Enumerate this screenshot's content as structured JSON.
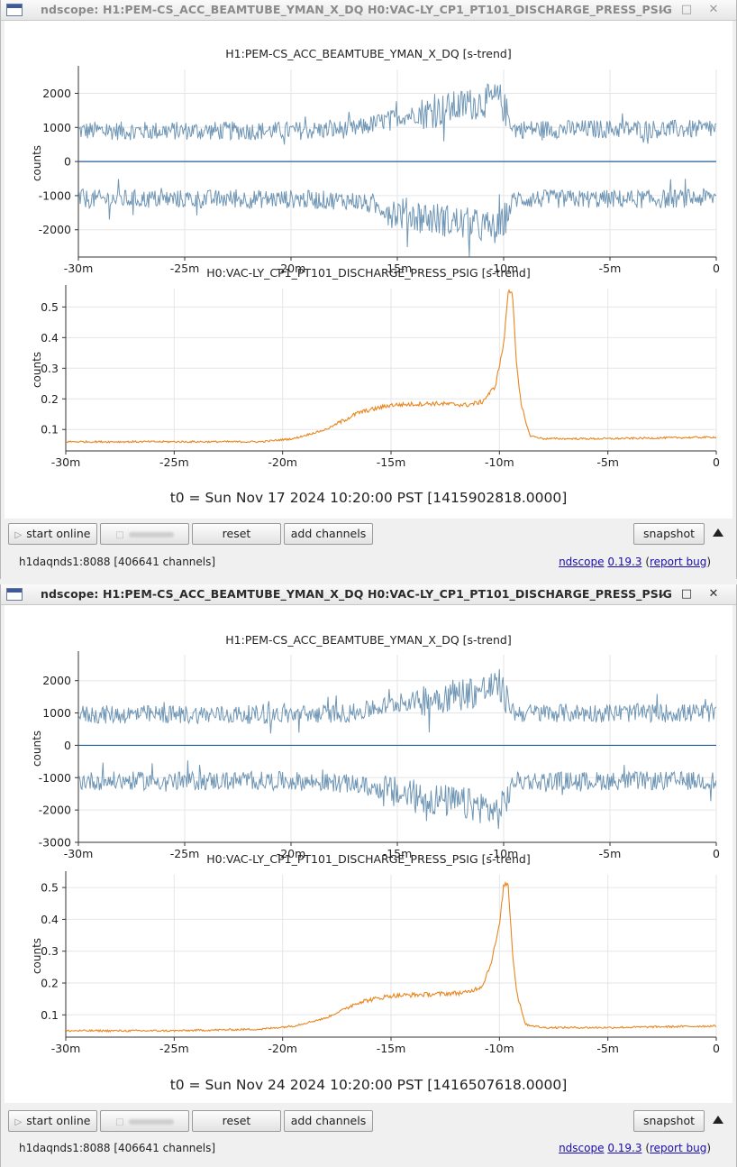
{
  "windows": [
    {
      "title": "ndscope: H1:PEM-CS_ACC_BEAMTUBE_YMAN_X_DQ H0:VAC-LY_CP1_PT101_DISCHARGE_PRESS_PSIG",
      "plots": [
        {
          "title": "H1:PEM-CS_ACC_BEAMTUBE_YMAN_X_DQ [s-trend]",
          "ylabel": "counts"
        },
        {
          "title": "H0:VAC-LY_CP1_PT101_DISCHARGE_PRESS_PSIG [s-trend]",
          "ylabel": "counts"
        }
      ],
      "t0": "t0 = Sun Nov 17 2024 10:20:00 PST [1415902818.0000]",
      "toolbar": {
        "start_online": "start online",
        "reset": "reset",
        "add_channels": "add channels",
        "snapshot": "snapshot"
      },
      "status": {
        "server": "h1daqnds1:8088  [406641 channels]",
        "app": "ndscope",
        "version": "0.19.3",
        "report_bug": "report bug"
      }
    },
    {
      "title": "ndscope: H1:PEM-CS_ACC_BEAMTUBE_YMAN_X_DQ H0:VAC-LY_CP1_PT101_DISCHARGE_PRESS_PSIG",
      "plots": [
        {
          "title": "H1:PEM-CS_ACC_BEAMTUBE_YMAN_X_DQ [s-trend]",
          "ylabel": "counts"
        },
        {
          "title": "H0:VAC-LY_CP1_PT101_DISCHARGE_PRESS_PSIG [s-trend]",
          "ylabel": "counts"
        }
      ],
      "t0": "t0 = Sun Nov 24 2024 10:20:00 PST [1416507618.0000]",
      "toolbar": {
        "start_online": "start online",
        "reset": "reset",
        "add_channels": "add channels",
        "snapshot": "snapshot"
      },
      "status": {
        "server": "h1daqnds1:8088  [406641 channels]",
        "app": "ndscope",
        "version": "0.19.3",
        "report_bug": "report bug"
      }
    }
  ],
  "colors": {
    "accel_trace": "#6f96b5",
    "accel_mean": "#1f5e9c",
    "pressure_trace": "#e8861f",
    "grid": "#e6e6e6"
  },
  "icons": {
    "minimize": "chevron-down-icon",
    "maximize": "square-icon",
    "close": "close-icon",
    "play": "play-icon",
    "collapse": "triangle-up-icon"
  },
  "chart_data": [
    {
      "type": "line",
      "title": "H1:PEM-CS_ACC_BEAMTUBE_YMAN_X_DQ [s-trend]",
      "xlabel": "",
      "ylabel": "counts",
      "x_ticks": [
        "-30m",
        "-25m",
        "-20m",
        "-15m",
        "-10m",
        "-5m",
        "0"
      ],
      "y_ticks": [
        2000,
        1000,
        0,
        -1000,
        -2000
      ],
      "xlim": [
        -30,
        0
      ],
      "ylim": [
        -2800,
        2700
      ],
      "series": [
        {
          "points": [
            [
              -30,
              900
            ],
            [
              -25,
              900
            ],
            [
              -20,
              900
            ],
            [
              -17,
              950
            ],
            [
              -15,
              1300
            ],
            [
              -13,
              1500
            ],
            [
              -11,
              1750
            ],
            [
              -10.2,
              1850
            ],
            [
              -9.5,
              950
            ],
            [
              -5,
              950
            ],
            [
              -2.5,
              950
            ],
            [
              0,
              950
            ]
          ]
        },
        {
          "points": [
            [
              -30,
              0
            ],
            [
              0,
              0
            ]
          ]
        },
        {
          "points": [
            [
              -30,
              -1100
            ],
            [
              -25,
              -1100
            ],
            [
              -20,
              -1100
            ],
            [
              -17,
              -1150
            ],
            [
              -15,
              -1500
            ],
            [
              -13,
              -1700
            ],
            [
              -11,
              -1900
            ],
            [
              -10.2,
              -2000
            ],
            [
              -9.5,
              -1100
            ],
            [
              -5,
              -1100
            ],
            [
              -2.5,
              -1100
            ],
            [
              0,
              -1050
            ]
          ]
        }
      ]
    },
    {
      "type": "line",
      "title": "H0:VAC-LY_CP1_PT101_DISCHARGE_PRESS_PSIG [s-trend]",
      "xlabel": "",
      "ylabel": "counts",
      "x_ticks": [
        "-30m",
        "-25m",
        "-20m",
        "-15m",
        "-10m",
        "-5m",
        "0"
      ],
      "y_ticks": [
        0.5,
        0.4,
        0.3,
        0.2,
        0.1
      ],
      "xlim": [
        -30,
        0
      ],
      "ylim": [
        0.03,
        0.56
      ],
      "series": [
        {
          "points": [
            [
              -30,
              0.06
            ],
            [
              -25,
              0.06
            ],
            [
              -21,
              0.06
            ],
            [
              -19.5,
              0.07
            ],
            [
              -18,
              0.1
            ],
            [
              -16.5,
              0.155
            ],
            [
              -15,
              0.18
            ],
            [
              -13,
              0.185
            ],
            [
              -11.5,
              0.18
            ],
            [
              -10.8,
              0.19
            ],
            [
              -10.2,
              0.24
            ],
            [
              -9.8,
              0.38
            ],
            [
              -9.6,
              0.55
            ],
            [
              -9.4,
              0.55
            ],
            [
              -9.2,
              0.3
            ],
            [
              -9,
              0.18
            ],
            [
              -8.6,
              0.08
            ],
            [
              -8,
              0.07
            ],
            [
              -5,
              0.07
            ],
            [
              0,
              0.075
            ]
          ]
        }
      ]
    },
    {
      "type": "line",
      "title": "H1:PEM-CS_ACC_BEAMTUBE_YMAN_X_DQ [s-trend]",
      "xlabel": "",
      "ylabel": "counts",
      "x_ticks": [
        "-30m",
        "-25m",
        "-20m",
        "-15m",
        "-10m",
        "-5m",
        "0"
      ],
      "y_ticks": [
        2000,
        1000,
        0,
        -1000,
        -2000,
        -3000
      ],
      "xlim": [
        -30,
        0
      ],
      "ylim": [
        -3000,
        2800
      ],
      "series": [
        {
          "points": [
            [
              -30,
              950
            ],
            [
              -25,
              950
            ],
            [
              -20,
              950
            ],
            [
              -17,
              1000
            ],
            [
              -15,
              1300
            ],
            [
              -13,
              1500
            ],
            [
              -11,
              1700
            ],
            [
              -10.2,
              1850
            ],
            [
              -9.5,
              1000
            ],
            [
              -5,
              1000
            ],
            [
              0,
              1000
            ]
          ]
        },
        {
          "points": [
            [
              -30,
              0
            ],
            [
              0,
              0
            ]
          ]
        },
        {
          "points": [
            [
              -30,
              -1100
            ],
            [
              -25,
              -1100
            ],
            [
              -20,
              -1100
            ],
            [
              -17,
              -1200
            ],
            [
              -15,
              -1500
            ],
            [
              -13,
              -1700
            ],
            [
              -11,
              -1900
            ],
            [
              -10.2,
              -2100
            ],
            [
              -9.5,
              -1100
            ],
            [
              -5,
              -1100
            ],
            [
              0,
              -1100
            ]
          ]
        }
      ]
    },
    {
      "type": "line",
      "title": "H0:VAC-LY_CP1_PT101_DISCHARGE_PRESS_PSIG [s-trend]",
      "xlabel": "",
      "ylabel": "counts",
      "x_ticks": [
        "-30m",
        "-25m",
        "-20m",
        "-15m",
        "-10m",
        "-5m",
        "0"
      ],
      "y_ticks": [
        0.5,
        0.4,
        0.3,
        0.2,
        0.1
      ],
      "xlim": [
        -30,
        0
      ],
      "ylim": [
        0.03,
        0.54
      ],
      "series": [
        {
          "points": [
            [
              -30,
              0.05
            ],
            [
              -25,
              0.05
            ],
            [
              -21,
              0.055
            ],
            [
              -19.5,
              0.065
            ],
            [
              -18,
              0.09
            ],
            [
              -16.5,
              0.14
            ],
            [
              -15,
              0.16
            ],
            [
              -13,
              0.165
            ],
            [
              -11.5,
              0.17
            ],
            [
              -10.8,
              0.19
            ],
            [
              -10.4,
              0.26
            ],
            [
              -10,
              0.38
            ],
            [
              -9.8,
              0.51
            ],
            [
              -9.6,
              0.51
            ],
            [
              -9.4,
              0.3
            ],
            [
              -9.2,
              0.17
            ],
            [
              -8.8,
              0.07
            ],
            [
              -8,
              0.06
            ],
            [
              -5,
              0.06
            ],
            [
              0,
              0.065
            ]
          ]
        }
      ]
    }
  ]
}
